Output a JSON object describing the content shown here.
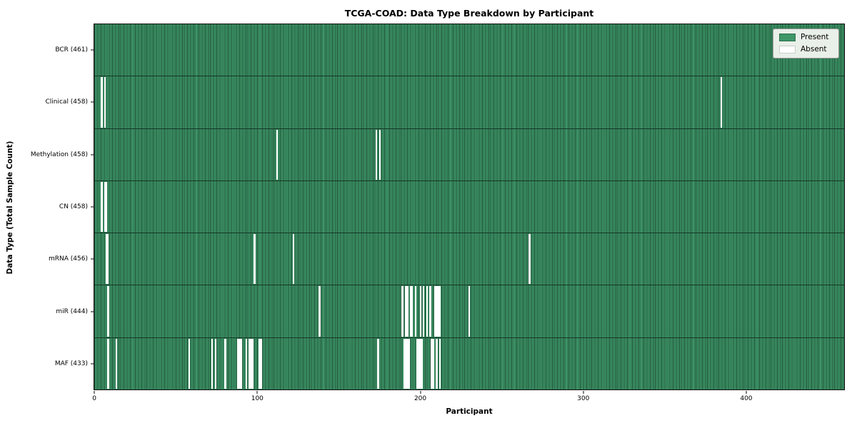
{
  "title": "TCGA-COAD: Data Type Breakdown by Participant",
  "xlabel": "Participant",
  "ylabel": "Data Type (Total Sample Count)",
  "legend": {
    "present_label": "Present",
    "absent_label": "Absent"
  },
  "colors": {
    "present": "#3e9669",
    "present_edge": "#1e4d33",
    "absent": "#ffffff",
    "legend_bg": "#e9efe9"
  },
  "chart_data": {
    "type": "heatmap",
    "title": "TCGA-COAD: Data Type Breakdown by Participant",
    "xlabel": "Participant",
    "ylabel": "Data Type (Total Sample Count)",
    "legend_entries": [
      "Present",
      "Absent"
    ],
    "legend_position": "upper right",
    "total_participants": 461,
    "x_ticks": [
      0,
      100,
      200,
      300,
      400
    ],
    "rows": [
      {
        "key": "BCR",
        "label": "BCR (461)",
        "present_count": 461,
        "absent_participants": []
      },
      {
        "key": "Clinical",
        "label": "Clinical (458)",
        "present_count": 458,
        "absent_participants": [
          4,
          6,
          385
        ]
      },
      {
        "key": "Methylation",
        "label": "Methylation (458)",
        "present_count": 458,
        "absent_participants": [
          112,
          173,
          175
        ]
      },
      {
        "key": "CN",
        "label": "CN (458)",
        "present_count": 458,
        "absent_participants": [
          4,
          6,
          7
        ]
      },
      {
        "key": "mRNA",
        "label": "mRNA (456)",
        "present_count": 456,
        "absent_participants": [
          7,
          8,
          98,
          122,
          267
        ]
      },
      {
        "key": "miR",
        "label": "miR (444)",
        "present_count": 444,
        "absent_participants": [
          8,
          138,
          189,
          191,
          192,
          194,
          195,
          197,
          200,
          202,
          204,
          206,
          209,
          210,
          211,
          212,
          230
        ]
      },
      {
        "key": "MAF",
        "label": "MAF (433)",
        "present_count": 433,
        "absent_participants": [
          8,
          13,
          58,
          72,
          74,
          80,
          88,
          89,
          90,
          93,
          95,
          96,
          97,
          101,
          102,
          174,
          190,
          191,
          192,
          193,
          198,
          199,
          200,
          201,
          207,
          208,
          210,
          212
        ]
      }
    ]
  }
}
